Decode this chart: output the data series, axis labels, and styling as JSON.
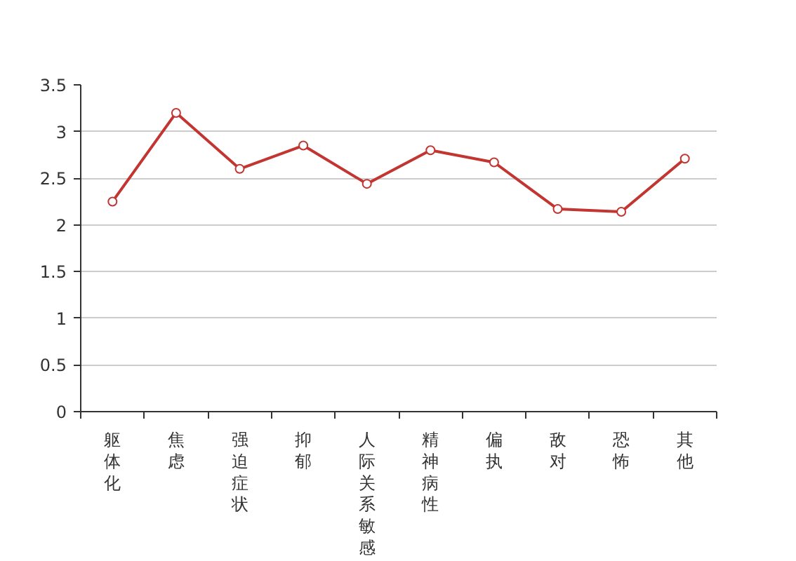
{
  "chart_data": {
    "type": "line",
    "categories": [
      "躯体化",
      "焦虑",
      "强迫症状",
      "抑郁",
      "人际关系敏感",
      "精神病性",
      "偏执",
      "敌对",
      "恐怖",
      "其他"
    ],
    "series": [
      {
        "color": "#c23531",
        "values": [
          2.25,
          3.2,
          2.6,
          2.85,
          2.44,
          2.8,
          2.67,
          2.17,
          2.14,
          2.71
        ]
      }
    ],
    "ylim": [
      0,
      3.5
    ],
    "yticks": [
      0,
      0.5,
      1,
      1.5,
      2,
      2.5,
      3,
      3.5
    ],
    "grid": "y",
    "marker": "circle",
    "line_style": "solid"
  }
}
